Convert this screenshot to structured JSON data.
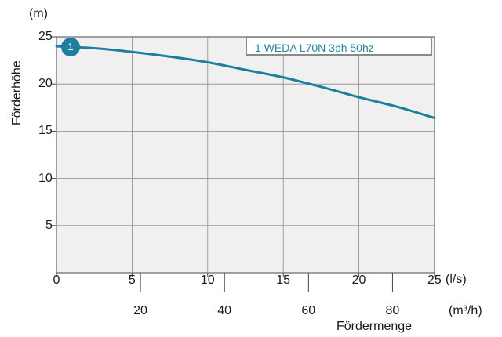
{
  "chart_data": {
    "type": "line",
    "ylabel": "Förderhöhe",
    "yunit": "(m)",
    "xlabel": "Fördermenge",
    "xunit_primary": "(l/s)",
    "xunit_secondary": "(m³/h)",
    "xlim": [
      0,
      25
    ],
    "ylim": [
      0,
      25
    ],
    "x_ticks": [
      "0",
      "5",
      "10",
      "15",
      "20",
      "25"
    ],
    "x_ticks_secondary": [
      "20",
      "40",
      "60",
      "80"
    ],
    "y_ticks": [
      "5",
      "10",
      "15",
      "20",
      "25"
    ],
    "grid": true,
    "legend_position": "top-right",
    "series": [
      {
        "name": "1 WEDA L70N 3ph 50hz",
        "marker": "1",
        "color": "#1c7fa0",
        "x": [
          0,
          2.5,
          5,
          7.5,
          10,
          12.5,
          15,
          17.5,
          20,
          22.5,
          25
        ],
        "y": [
          24.0,
          23.8,
          23.4,
          22.9,
          22.3,
          21.5,
          20.7,
          19.7,
          18.6,
          17.6,
          16.4
        ]
      }
    ]
  }
}
